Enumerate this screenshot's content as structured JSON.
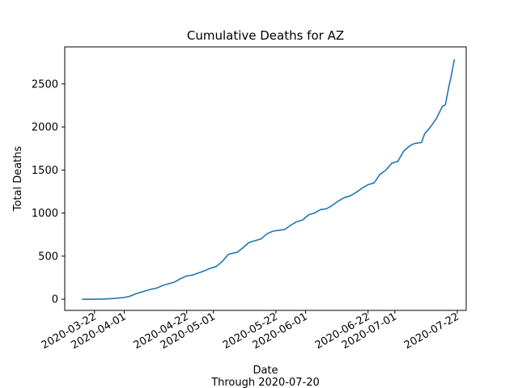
{
  "chart_data": {
    "type": "line",
    "title": "Cumulative Deaths for AZ",
    "xlabel": "Date",
    "xlabel_sub": "Through 2020-07-20",
    "ylabel": "Total Deaths",
    "x_is_date": true,
    "xlim": [
      "2020-03-12",
      "2020-07-25"
    ],
    "ylim": [
      -130,
      2930
    ],
    "xticks": [
      "2020-03-22",
      "2020-04-01",
      "2020-04-22",
      "2020-05-01",
      "2020-05-22",
      "2020-06-01",
      "2020-06-22",
      "2020-07-01",
      "2020-07-22"
    ],
    "yticks": [
      0,
      500,
      1000,
      1500,
      2000,
      2500
    ],
    "grid": false,
    "color": "#1f77b4",
    "series": [
      {
        "x": [
          "2020-03-18",
          "2020-03-22",
          "2020-03-26",
          "2020-03-29",
          "2020-04-01",
          "2020-04-03",
          "2020-04-05",
          "2020-04-07",
          "2020-04-08",
          "2020-04-10",
          "2020-04-12",
          "2020-04-14",
          "2020-04-16",
          "2020-04-18",
          "2020-04-20",
          "2020-04-22",
          "2020-04-24",
          "2020-04-26",
          "2020-04-28",
          "2020-04-30",
          "2020-05-02",
          "2020-05-04",
          "2020-05-06",
          "2020-05-07",
          "2020-05-09",
          "2020-05-11",
          "2020-05-13",
          "2020-05-15",
          "2020-05-17",
          "2020-05-19",
          "2020-05-21",
          "2020-05-23",
          "2020-05-25",
          "2020-05-27",
          "2020-05-29",
          "2020-05-31",
          "2020-06-02",
          "2020-06-04",
          "2020-06-06",
          "2020-06-08",
          "2020-06-10",
          "2020-06-12",
          "2020-06-14",
          "2020-06-16",
          "2020-06-18",
          "2020-06-20",
          "2020-06-22",
          "2020-06-24",
          "2020-06-26",
          "2020-06-28",
          "2020-06-30",
          "2020-07-01",
          "2020-07-02",
          "2020-07-04",
          "2020-07-06",
          "2020-07-07",
          "2020-07-08",
          "2020-07-10",
          "2020-07-11",
          "2020-07-13",
          "2020-07-15",
          "2020-07-17",
          "2020-07-18",
          "2020-07-19",
          "2020-07-20",
          "2020-07-21"
        ],
        "y": [
          0,
          0,
          3,
          10,
          20,
          35,
          65,
          85,
          95,
          115,
          130,
          160,
          180,
          200,
          240,
          270,
          280,
          305,
          330,
          360,
          380,
          440,
          520,
          530,
          545,
          600,
          660,
          680,
          700,
          760,
          790,
          800,
          810,
          860,
          900,
          920,
          980,
          1000,
          1040,
          1050,
          1090,
          1140,
          1180,
          1200,
          1240,
          1290,
          1330,
          1350,
          1450,
          1500,
          1580,
          1590,
          1600,
          1720,
          1780,
          1800,
          1810,
          1820,
          1920,
          2000,
          2100,
          2240,
          2260,
          2440,
          2600,
          2780
        ]
      }
    ]
  }
}
